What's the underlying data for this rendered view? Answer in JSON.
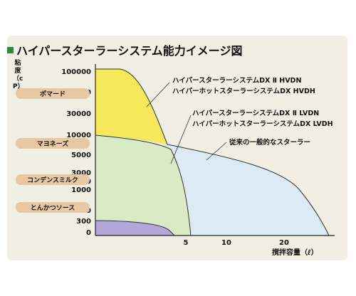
{
  "title": "ハイパースターラーシステム能力イメージ図",
  "colors": {
    "bullet": "#2e8b3e",
    "hvd": "#f5e85a",
    "lvd": "#d8ebc4",
    "general": "#dcebf3",
    "small": "#b3a6d8"
  },
  "chart_data": {
    "type": "area",
    "title": "ハイパースターラーシステム能力イメージ図",
    "ylabel": "粘度（cP）",
    "xlabel": "撹拌容量（ℓ）",
    "y_scale": "non-linear",
    "y_ticks": [
      "0",
      "300",
      "500",
      "1000",
      "2000",
      "3000",
      "5000",
      "10000",
      "30000",
      "50000",
      "100000"
    ],
    "x_ticks": [
      "5",
      "10",
      "20"
    ],
    "grid": false,
    "series": [
      {
        "name": "ハイパースターラーシステムDX Ⅱ HVDN / ハイパーホットスターラーシステムDX HVDH",
        "points": [
          [
            0,
            100000
          ],
          [
            2.5,
            95000
          ],
          [
            4,
            10000
          ],
          [
            4.2,
            7000
          ]
        ]
      },
      {
        "name": "ハイパースターラーシステムDX Ⅱ LVDN / ハイパーホットスターラーシステムDX LVDH",
        "points": [
          [
            0,
            10000
          ],
          [
            3,
            7500
          ],
          [
            4.2,
            5000
          ],
          [
            5.5,
            500
          ],
          [
            6,
            0
          ]
        ]
      },
      {
        "name": "従来の一般的なスターラー",
        "points": [
          [
            4.2,
            7000
          ],
          [
            15,
            4500
          ],
          [
            22,
            1000
          ],
          [
            26,
            0
          ]
        ]
      }
    ],
    "annotations": [
      "ハイパースターラーシステムDX Ⅱ HVDN",
      "ハイパーホットスターラーシステムDX HVDH",
      "ハイパースターラーシステムDX Ⅱ LVDN",
      "ハイパーホットスターラーシステムDX LVDH",
      "従来の一般的なスターラー"
    ],
    "reference_labels": [
      "ポマード",
      "マヨネーズ",
      "コンデンスミルク",
      "とんかつソース"
    ]
  }
}
